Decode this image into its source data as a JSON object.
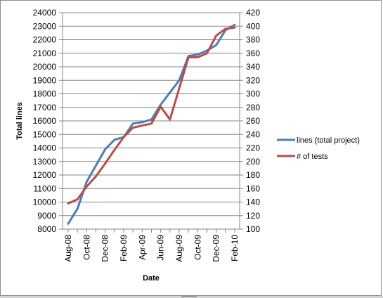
{
  "chart_data": {
    "type": "line",
    "title": "",
    "xlabel": "Date",
    "ylabel": "Total lines",
    "y2label": "",
    "grid": true,
    "legend_position": "right",
    "x_tick_labels": [
      "Aug-08",
      "Oct-08",
      "Dec-08",
      "Feb-09",
      "Apr-09",
      "Jun-09",
      "Aug-09",
      "Oct-09",
      "Dec-09",
      "Feb-10"
    ],
    "x_count": 19,
    "ylim": [
      8000,
      24000
    ],
    "y_ticks": [
      8000,
      9000,
      10000,
      11000,
      12000,
      13000,
      14000,
      15000,
      16000,
      17000,
      18000,
      19000,
      20000,
      21000,
      22000,
      23000,
      24000
    ],
    "y2lim": [
      100,
      420
    ],
    "y2_ticks": [
      100,
      120,
      140,
      160,
      180,
      200,
      220,
      240,
      260,
      280,
      300,
      320,
      340,
      360,
      380,
      400,
      420
    ],
    "series": [
      {
        "name": "lines (total project)",
        "axis": "left",
        "color": "#4a7ebb",
        "values": [
          8400,
          9500,
          11500,
          12700,
          13900,
          14600,
          14800,
          15800,
          15900,
          16100,
          17200,
          18100,
          19000,
          20800,
          20900,
          21200,
          21600,
          22700,
          23100
        ]
      },
      {
        "name": "# of tests",
        "axis": "right",
        "color": "#be4b48",
        "values": [
          138,
          144,
          163,
          178,
          197,
          217,
          236,
          250,
          253,
          256,
          281,
          262,
          308,
          354,
          354,
          360,
          386,
          396,
          398
        ]
      }
    ]
  }
}
